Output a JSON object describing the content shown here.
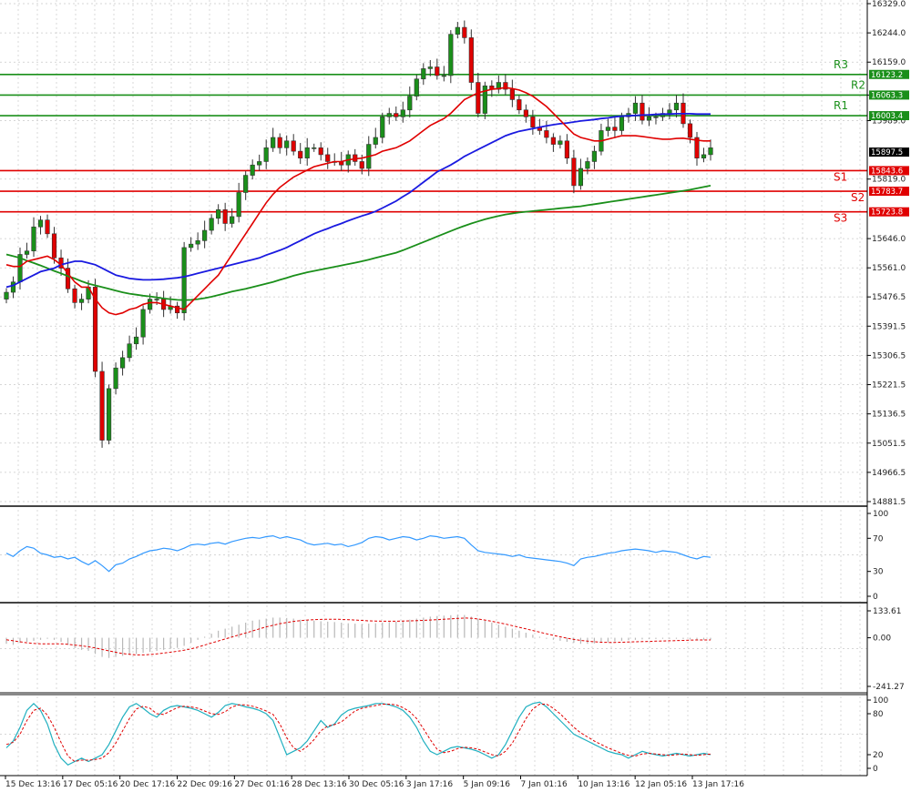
{
  "chart_data": {
    "type": "candlestick",
    "main": {
      "price_ticks": [
        "16329.0",
        "16244.0",
        "16159.0",
        "16063.3",
        "15989.0",
        "15819.0",
        "15646.0",
        "15561.0",
        "15476.5",
        "15391.5",
        "15306.5",
        "15221.5",
        "15136.5",
        "15051.5",
        "14966.5",
        "14881.5"
      ],
      "current_price": "15897.5",
      "x_labels": [
        "15 Dec 13:16",
        "17 Dec 05:16",
        "20 Dec 17:16",
        "22 Dec 09:16",
        "27 Dec 01:16",
        "28 Dec 13:16",
        "30 Dec 05:16",
        "3 Jan 17:16",
        "5 Jan 09:16",
        "7 Jan 01:16",
        "10 Jan 13:16",
        "12 Jan 05:16",
        "13 Jan 17:16"
      ],
      "levels": [
        {
          "name": "R3",
          "value": 16123.2,
          "tag": "16123.2",
          "color": "#1a8f1a"
        },
        {
          "name": "R2",
          "value": 16063.3,
          "tag": "16063.3",
          "color": "#1a8f1a"
        },
        {
          "name": "R1",
          "value": 16003.4,
          "tag": "16003.4",
          "color": "#1a8f1a"
        },
        {
          "name": "S1",
          "value": 15843.6,
          "tag": "15843.6",
          "color": "#e00000"
        },
        {
          "name": "S2",
          "value": 15783.7,
          "tag": "15783.7",
          "color": "#e00000"
        },
        {
          "name": "S3",
          "value": 15723.8,
          "tag": "15723.8",
          "color": "#e00000"
        }
      ],
      "closes": [
        15490,
        15520,
        15600,
        15610,
        15680,
        15700,
        15660,
        15590,
        15560,
        15500,
        15460,
        15470,
        15505,
        15260,
        15060,
        15210,
        15270,
        15300,
        15340,
        15360,
        15440,
        15470,
        15470,
        15440,
        15450,
        15430,
        15620,
        15630,
        15640,
        15670,
        15705,
        15730,
        15690,
        15710,
        15780,
        15830,
        15860,
        15870,
        15910,
        15940,
        15910,
        15930,
        15900,
        15880,
        15910,
        15910,
        15890,
        15870,
        15870,
        15860,
        15890,
        15870,
        15850,
        15920,
        15940,
        16000,
        16010,
        16000,
        16020,
        16060,
        16110,
        16140,
        16145,
        16120,
        16120,
        16240,
        16260,
        16230,
        16100,
        16010,
        16090,
        16080,
        16100,
        16080,
        16050,
        16020,
        16000,
        15970,
        15960,
        15940,
        15920,
        15930,
        15880,
        15800,
        15850,
        15870,
        15900,
        15960,
        15970,
        15960,
        16000,
        16010,
        16040,
        15990,
        16000,
        16000,
        16010,
        16020,
        16040,
        15980,
        15940,
        15880,
        15890,
        15910
      ],
      "ma_red": [
        15570,
        15565,
        15565,
        15580,
        15585,
        15590,
        15595,
        15585,
        15570,
        15545,
        15520,
        15505,
        15505,
        15470,
        15445,
        15430,
        15425,
        15430,
        15440,
        15445,
        15455,
        15460,
        15460,
        15455,
        15450,
        15445,
        15440,
        15460,
        15480,
        15500,
        15520,
        15540,
        15570,
        15600,
        15630,
        15660,
        15690,
        15720,
        15750,
        15775,
        15795,
        15810,
        15825,
        15835,
        15845,
        15855,
        15860,
        15865,
        15870,
        15870,
        15875,
        15878,
        15880,
        15885,
        15890,
        15900,
        15905,
        15910,
        15920,
        15930,
        15945,
        15960,
        15975,
        15985,
        15995,
        16010,
        16030,
        16050,
        16060,
        16070,
        16075,
        16080,
        16082,
        16085,
        16082,
        16078,
        16070,
        16060,
        16045,
        16030,
        16010,
        15990,
        15970,
        15950,
        15940,
        15935,
        15930,
        15930,
        15935,
        15940,
        15945,
        15945,
        15945,
        15943,
        15940,
        15937,
        15935,
        15935,
        15937,
        15938,
        15935,
        15932,
        15930,
        15930
      ],
      "ma_blue": [
        15505,
        15510,
        15520,
        15530,
        15540,
        15550,
        15555,
        15560,
        15570,
        15575,
        15580,
        15580,
        15575,
        15570,
        15560,
        15550,
        15540,
        15535,
        15530,
        15528,
        15526,
        15526,
        15527,
        15528,
        15530,
        15532,
        15535,
        15540,
        15545,
        15550,
        15555,
        15560,
        15565,
        15570,
        15575,
        15580,
        15585,
        15590,
        15598,
        15605,
        15612,
        15620,
        15630,
        15640,
        15650,
        15660,
        15668,
        15675,
        15683,
        15690,
        15698,
        15705,
        15712,
        15718,
        15725,
        15735,
        15745,
        15755,
        15768,
        15780,
        15795,
        15810,
        15825,
        15840,
        15850,
        15860,
        15872,
        15885,
        15895,
        15905,
        15915,
        15925,
        15935,
        15945,
        15952,
        15958,
        15962,
        15966,
        15970,
        15974,
        15977,
        15980,
        15982,
        15985,
        15988,
        15990,
        15992,
        15995,
        15997,
        16000,
        16002,
        16003,
        16004,
        16005,
        16006,
        16007,
        16008,
        16008,
        16009,
        16009,
        16009,
        16008,
        16008,
        16008
      ],
      "ma_green": [
        15600,
        15595,
        15590,
        15582,
        15575,
        15568,
        15560,
        15552,
        15545,
        15537,
        15530,
        15522,
        15515,
        15510,
        15505,
        15500,
        15495,
        15490,
        15486,
        15483,
        15480,
        15478,
        15475,
        15472,
        15470,
        15468,
        15467,
        15468,
        15470,
        15473,
        15477,
        15482,
        15487,
        15492,
        15496,
        15500,
        15505,
        15510,
        15515,
        15520,
        15526,
        15532,
        15538,
        15543,
        15548,
        15552,
        15556,
        15560,
        15564,
        15568,
        15572,
        15576,
        15580,
        15585,
        15590,
        15595,
        15600,
        15605,
        15612,
        15620,
        15628,
        15636,
        15644,
        15652,
        15660,
        15668,
        15676,
        15683,
        15690,
        15696,
        15702,
        15707,
        15712,
        15716,
        15719,
        15722,
        15724,
        15726,
        15728,
        15730,
        15732,
        15734,
        15736,
        15738,
        15740,
        15743,
        15746,
        15749,
        15752,
        15755,
        15758,
        15761,
        15764,
        15767,
        15770,
        15773,
        15776,
        15779,
        15782,
        15785,
        15788,
        15792,
        15796,
        15800
      ]
    },
    "rsi": {
      "ticks": [
        "100",
        "70",
        "30",
        "0"
      ],
      "values": [
        52,
        48,
        55,
        60,
        58,
        52,
        50,
        47,
        48,
        45,
        47,
        42,
        38,
        43,
        37,
        30,
        38,
        40,
        45,
        48,
        52,
        55,
        56,
        58,
        57,
        55,
        58,
        62,
        63,
        62,
        64,
        65,
        63,
        66,
        68,
        70,
        71,
        70,
        72,
        73,
        70,
        72,
        70,
        68,
        64,
        62,
        63,
        64,
        62,
        63,
        60,
        62,
        65,
        70,
        72,
        71,
        68,
        70,
        72,
        71,
        68,
        70,
        73,
        72,
        70,
        71,
        72,
        70,
        62,
        55,
        53,
        52,
        51,
        50,
        48,
        50,
        47,
        46,
        45,
        44,
        43,
        42,
        40,
        37,
        45,
        47,
        48,
        50,
        52,
        53,
        55,
        56,
        57,
        56,
        55,
        53,
        55,
        54,
        53,
        50,
        47,
        45,
        48,
        47
      ],
      "color": "#3399ff"
    },
    "macd": {
      "ticks": [
        "133.61",
        "0.00",
        "-241.27"
      ],
      "histogram": [
        -30,
        -35,
        -25,
        -20,
        -15,
        -10,
        -5,
        -10,
        -20,
        -35,
        -50,
        -60,
        -65,
        -80,
        -95,
        -100,
        -95,
        -90,
        -85,
        -80,
        -75,
        -70,
        -65,
        -60,
        -55,
        -50,
        -40,
        -25,
        -10,
        5,
        20,
        35,
        45,
        55,
        65,
        75,
        85,
        90,
        95,
        100,
        100,
        98,
        95,
        90,
        88,
        85,
        82,
        80,
        78,
        75,
        72,
        70,
        68,
        70,
        72,
        75,
        78,
        80,
        85,
        90,
        95,
        100,
        105,
        108,
        110,
        112,
        115,
        113,
        105,
        95,
        85,
        75,
        65,
        55,
        45,
        35,
        25,
        15,
        5,
        -5,
        -10,
        -15,
        -20,
        -25,
        -30,
        -30,
        -28,
        -25,
        -22,
        -18,
        -15,
        -12,
        -10,
        -8,
        -7,
        -6,
        -5,
        -5,
        -5,
        -6,
        -8,
        -10,
        -10,
        -10
      ],
      "signal": [
        -10,
        -15,
        -20,
        -25,
        -28,
        -30,
        -30,
        -30,
        -30,
        -32,
        -36,
        -40,
        -45,
        -50,
        -58,
        -65,
        -72,
        -78,
        -82,
        -85,
        -85,
        -83,
        -80,
        -76,
        -72,
        -67,
        -62,
        -55,
        -46,
        -36,
        -26,
        -16,
        -6,
        4,
        14,
        24,
        34,
        44,
        54,
        62,
        70,
        76,
        81,
        85,
        88,
        90,
        91,
        92,
        92,
        91,
        90,
        88,
        86,
        84,
        83,
        82,
        82,
        82,
        83,
        84,
        85,
        86,
        88,
        90,
        92,
        94,
        96,
        98,
        97,
        93,
        88,
        82,
        75,
        68,
        60,
        52,
        44,
        36,
        28,
        20,
        12,
        5,
        -2,
        -8,
        -13,
        -17,
        -20,
        -22,
        -23,
        -23,
        -22,
        -21,
        -20,
        -19,
        -18,
        -17,
        -16,
        -15,
        -14,
        -13,
        -12,
        -11,
        -11,
        -11
      ],
      "signal_color": "#e00000",
      "hist_color": "#b8b8b8"
    },
    "stochastic": {
      "ticks": [
        "100",
        "80",
        "20",
        "0"
      ],
      "k": [
        30,
        40,
        60,
        85,
        95,
        85,
        65,
        35,
        15,
        5,
        10,
        15,
        10,
        15,
        20,
        35,
        55,
        75,
        90,
        95,
        88,
        80,
        75,
        85,
        90,
        92,
        90,
        88,
        85,
        80,
        75,
        82,
        92,
        95,
        93,
        90,
        88,
        85,
        80,
        70,
        45,
        20,
        25,
        30,
        40,
        55,
        70,
        60,
        65,
        78,
        85,
        88,
        90,
        92,
        95,
        95,
        93,
        90,
        85,
        75,
        60,
        40,
        25,
        20,
        25,
        30,
        32,
        30,
        28,
        25,
        20,
        15,
        20,
        35,
        55,
        75,
        90,
        95,
        97,
        90,
        80,
        70,
        60,
        50,
        45,
        40,
        35,
        30,
        25,
        22,
        20,
        15,
        20,
        25,
        22,
        20,
        18,
        20,
        22,
        20,
        18,
        20,
        22,
        20
      ],
      "d": [
        35,
        38,
        50,
        70,
        85,
        88,
        78,
        60,
        38,
        18,
        10,
        12,
        12,
        13,
        15,
        23,
        37,
        55,
        73,
        87,
        91,
        88,
        80,
        79,
        84,
        89,
        91,
        90,
        88,
        84,
        80,
        79,
        83,
        90,
        93,
        93,
        91,
        88,
        84,
        79,
        65,
        45,
        30,
        25,
        32,
        42,
        55,
        62,
        64,
        68,
        76,
        84,
        88,
        90,
        92,
        94,
        94,
        93,
        89,
        83,
        73,
        58,
        42,
        28,
        23,
        25,
        29,
        31,
        30,
        28,
        24,
        20,
        18,
        25,
        37,
        55,
        73,
        87,
        94,
        94,
        88,
        80,
        70,
        60,
        52,
        46,
        40,
        35,
        30,
        26,
        22,
        19,
        18,
        21,
        22,
        21,
        20,
        19,
        20,
        21,
        20,
        19,
        20,
        21
      ],
      "k_color": "#20b0c0",
      "d_color": "#e00000"
    }
  }
}
